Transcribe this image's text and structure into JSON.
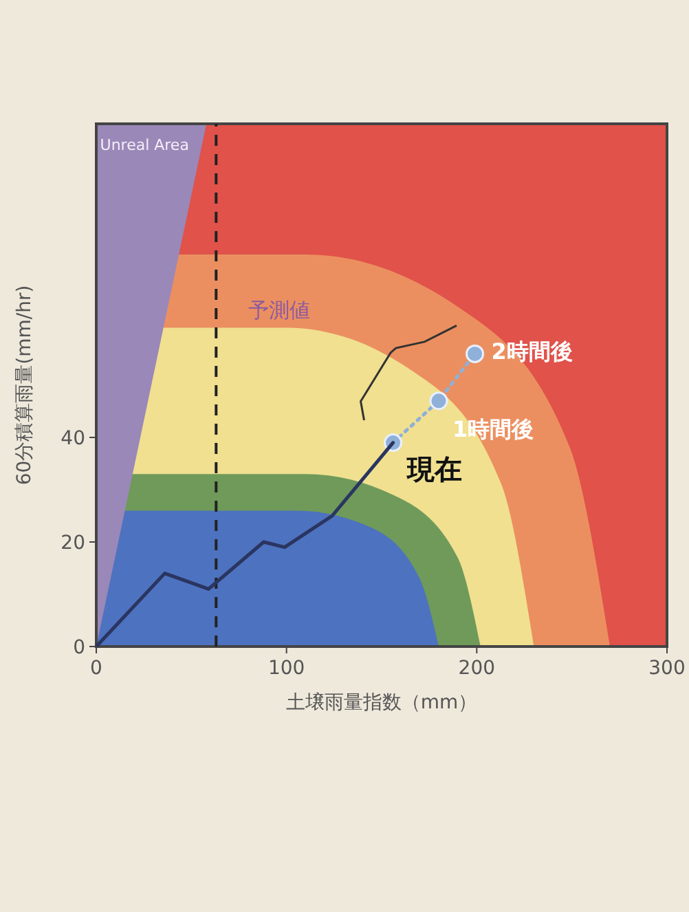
{
  "chart_data": {
    "type": "line",
    "xlabel": "土壌雨量指数（mm）",
    "ylabel": "60分積算雨量(mm/hr)",
    "xlim": [
      0,
      300
    ],
    "xticks": [
      0,
      100,
      200,
      300
    ],
    "ylim": [
      0,
      100
    ],
    "yticks": [
      0,
      20,
      40
    ],
    "series": [
      {
        "type": "area",
        "color": "#ec8f60",
        "x": [
          0,
          110,
          190,
          249,
          270
        ],
        "values": [
          75,
          75,
          65,
          38,
          0
        ]
      },
      {
        "type": "area",
        "color": "#f0e090",
        "x": [
          0,
          100,
          165,
          213,
          230
        ],
        "values": [
          61,
          61,
          53,
          31,
          0
        ]
      },
      {
        "type": "area",
        "color": "#6f9a5a",
        "x": [
          0,
          110,
          156,
          190,
          202
        ],
        "values": [
          33,
          33,
          29,
          17,
          0
        ]
      },
      {
        "type": "area",
        "color": "#4d72c0",
        "x": [
          0,
          105,
          143,
          170,
          180
        ],
        "values": [
          26,
          26,
          23,
          13,
          0
        ]
      },
      {
        "color": "#2a3560",
        "x": [
          0,
          36,
          59,
          88,
          99,
          124,
          156
        ],
        "values": [
          0,
          14,
          11,
          20,
          19,
          25,
          39
        ],
        "marker": "none",
        "line_style": "solid"
      },
      {
        "color": "#8fb0d8",
        "x": [
          156,
          180,
          199
        ],
        "values": [
          39,
          47,
          56
        ],
        "marker": "circle",
        "line_style": "dotted"
      }
    ],
    "ref_lines": [
      {
        "axis": "x",
        "value": 63,
        "color": "#222222",
        "line_style": "dashed"
      }
    ],
    "annotations": [
      "Unreal Area",
      "予測値",
      {
        "text": "現在",
        "x": 156,
        "y": 39
      },
      {
        "text": "1時間後",
        "x": 180,
        "y": 47
      },
      {
        "text": "2時間後",
        "x": 199,
        "y": 56
      }
    ]
  }
}
